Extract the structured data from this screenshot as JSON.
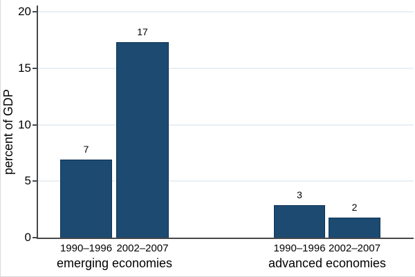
{
  "chart_data": {
    "type": "bar",
    "title": "",
    "xlabel": "",
    "ylabel": "percent of GDP",
    "ylim": [
      0,
      20
    ],
    "yticks": [
      0,
      5,
      10,
      15,
      20
    ],
    "grid": "horizontal",
    "legend": "none",
    "bar_color": "#1c4a71",
    "bar_border_color": "#0f3355",
    "axis_color": "#474747",
    "gridline_color": "#e8eff6",
    "background_color": "#ffffff",
    "categories": [
      "1990–1996",
      "2002–2007"
    ],
    "groups": [
      {
        "label": "emerging economies",
        "bars": [
          {
            "category": "1990–1996",
            "value": 6.9,
            "data_label": "7"
          },
          {
            "category": "2002–2007",
            "value": 17.3,
            "data_label": "17"
          }
        ]
      },
      {
        "label": "advanced economies",
        "bars": [
          {
            "category": "1990–1996",
            "value": 2.9,
            "data_label": "3"
          },
          {
            "category": "2002–2007",
            "value": 1.8,
            "data_label": "2"
          }
        ]
      }
    ]
  }
}
